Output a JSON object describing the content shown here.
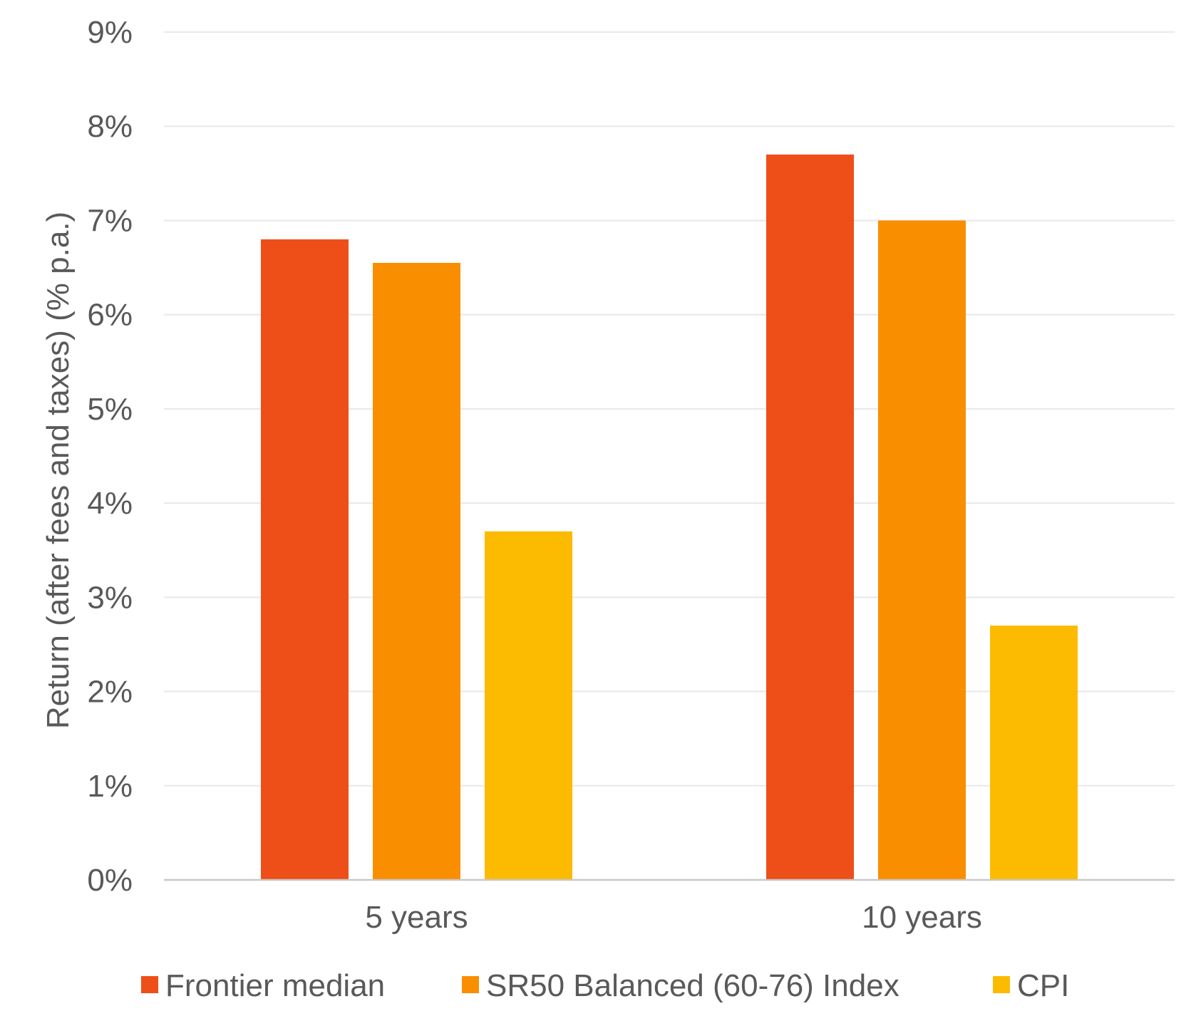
{
  "chart_data": {
    "type": "bar",
    "title": "",
    "xlabel": "",
    "ylabel": "Return (after fees and taxes) (% p.a.)",
    "categories": [
      "5 years",
      "10 years"
    ],
    "series": [
      {
        "name": "Frontier median",
        "values": [
          6.8,
          7.7
        ],
        "color": "#EE4F18"
      },
      {
        "name": "SR50 Balanced (60-76) Index",
        "values": [
          6.55,
          7.0
        ],
        "color": "#F98E00"
      },
      {
        "name": "CPI",
        "values": [
          3.7,
          2.7
        ],
        "color": "#FCBB00"
      }
    ],
    "ylim": [
      0,
      9
    ],
    "yticks": [
      0,
      1,
      2,
      3,
      4,
      5,
      6,
      7,
      8,
      9
    ],
    "ytick_labels": [
      "0%",
      "1%",
      "2%",
      "3%",
      "4%",
      "5%",
      "6%",
      "7%",
      "8%",
      "9%"
    ],
    "grid": true,
    "legend_position": "bottom",
    "colors": {
      "gridline": "#E8E8E8",
      "axis_line": "#C8C8C8",
      "text": "#595959"
    }
  }
}
